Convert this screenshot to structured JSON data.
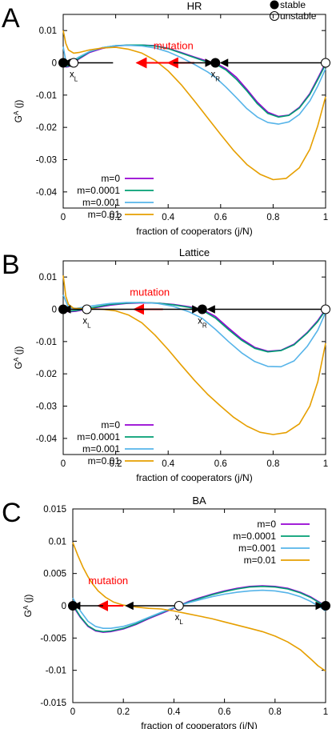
{
  "stability_legend": {
    "stable": "stable",
    "unstable": "unstable"
  },
  "colors": {
    "m=0": "#9400d3",
    "m=0.0001": "#009e73",
    "m=0.001": "#56b4e9",
    "m=0.01": "#e69f00",
    "arrow_red": "#ff0000",
    "arrow_black": "#000000"
  },
  "chart_data": [
    {
      "panel": "A",
      "type": "line",
      "title": "HR",
      "xlabel": "fraction of cooperators (j/N)",
      "ylabel": "G^A (j)",
      "xlim": [
        0,
        1
      ],
      "ylim": [
        -0.045,
        0.015
      ],
      "xticks": [
        "0",
        "0.2",
        "0.4",
        "0.6",
        "0.8",
        "1"
      ],
      "yticks": [
        "0.01",
        "0",
        "-0.01",
        "-0.02",
        "-0.03",
        "-0.04"
      ],
      "legend_position": "bottom-left",
      "annotation": "mutation",
      "points": [
        {
          "label": "x",
          "sub": "L",
          "x": 0.04,
          "y": 0,
          "stable": false
        },
        {
          "label": "x",
          "sub": "R",
          "x": 0.58,
          "y": 0,
          "stable": true
        },
        {
          "label": "",
          "sub": "",
          "x": 0.0,
          "y": 0,
          "stable": true
        },
        {
          "label": "",
          "sub": "",
          "x": 1.0,
          "y": 0,
          "stable": false
        }
      ],
      "series": [
        {
          "name": "m=0",
          "x": [
            0,
            0.01,
            0.02,
            0.04,
            0.06,
            0.1,
            0.15,
            0.2,
            0.25,
            0.3,
            0.35,
            0.4,
            0.45,
            0.5,
            0.55,
            0.58,
            0.62,
            0.66,
            0.7,
            0.74,
            0.78,
            0.82,
            0.86,
            0.9,
            0.94,
            0.97,
            1.0
          ],
          "y": [
            0.0,
            -0.0013,
            -0.0012,
            0.0,
            0.0012,
            0.0032,
            0.0045,
            0.0052,
            0.0055,
            0.0055,
            0.0053,
            0.0045,
            0.0032,
            0.0018,
            0.0005,
            0.0,
            -0.0018,
            -0.0045,
            -0.0082,
            -0.0122,
            -0.0153,
            -0.0166,
            -0.0162,
            -0.0138,
            -0.0095,
            -0.0048,
            0.0
          ]
        },
        {
          "name": "m=0.0001",
          "x": [
            0,
            0.01,
            0.02,
            0.04,
            0.06,
            0.1,
            0.15,
            0.2,
            0.25,
            0.3,
            0.35,
            0.4,
            0.45,
            0.5,
            0.55,
            0.58,
            0.62,
            0.66,
            0.7,
            0.74,
            0.78,
            0.82,
            0.86,
            0.9,
            0.94,
            0.97,
            1.0
          ],
          "y": [
            0.0005,
            -0.0011,
            -0.001,
            0.0002,
            0.0014,
            0.0034,
            0.0047,
            0.0053,
            0.0055,
            0.0055,
            0.0052,
            0.0044,
            0.003,
            0.0016,
            0.0002,
            -0.0004,
            -0.0022,
            -0.0051,
            -0.0087,
            -0.0127,
            -0.0157,
            -0.0168,
            -0.0163,
            -0.014,
            -0.0098,
            -0.0052,
            -0.0005
          ]
        },
        {
          "name": "m=0.001",
          "x": [
            0,
            0.01,
            0.02,
            0.04,
            0.06,
            0.1,
            0.15,
            0.2,
            0.25,
            0.3,
            0.35,
            0.4,
            0.45,
            0.5,
            0.55,
            0.58,
            0.62,
            0.66,
            0.7,
            0.74,
            0.78,
            0.82,
            0.86,
            0.9,
            0.94,
            0.97,
            1.0
          ],
          "y": [
            0.005,
            0.0005,
            -0.0002,
            0.0008,
            0.0018,
            0.0035,
            0.0047,
            0.0053,
            0.0054,
            0.0052,
            0.0046,
            0.0034,
            0.0016,
            -0.0005,
            -0.0028,
            -0.0045,
            -0.0075,
            -0.0108,
            -0.0142,
            -0.0168,
            -0.0185,
            -0.019,
            -0.0183,
            -0.016,
            -0.0118,
            -0.0072,
            -0.0018
          ]
        },
        {
          "name": "m=0.01",
          "x": [
            0,
            0.01,
            0.02,
            0.04,
            0.06,
            0.1,
            0.15,
            0.2,
            0.25,
            0.3,
            0.35,
            0.4,
            0.45,
            0.5,
            0.55,
            0.6,
            0.65,
            0.7,
            0.75,
            0.8,
            0.85,
            0.9,
            0.94,
            0.97,
            1.0
          ],
          "y": [
            0.01,
            0.006,
            0.004,
            0.003,
            0.0032,
            0.004,
            0.0046,
            0.0048,
            0.0042,
            0.003,
            0.0008,
            -0.0025,
            -0.0068,
            -0.0118,
            -0.017,
            -0.0222,
            -0.0272,
            -0.0315,
            -0.0345,
            -0.0362,
            -0.0358,
            -0.0325,
            -0.0268,
            -0.0195,
            -0.0105
          ]
        }
      ],
      "arrows": [
        {
          "x1": 0.19,
          "x2": 0.0,
          "color": "arrow_black"
        },
        {
          "x1": 0.42,
          "x2": 0.28,
          "color": "arrow_red"
        },
        {
          "x1": 0.5,
          "x2": 0.4,
          "color": "arrow_red"
        },
        {
          "x1": 0.42,
          "x2": 0.57,
          "color": "arrow_black"
        },
        {
          "x1": 0.99,
          "x2": 0.6,
          "color": "arrow_black"
        }
      ]
    },
    {
      "panel": "B",
      "type": "line",
      "title": "Lattice",
      "xlabel": "fraction of cooperators (j/N)",
      "ylabel": "G^A (j)",
      "xlim": [
        0,
        1
      ],
      "ylim": [
        -0.045,
        0.015
      ],
      "xticks": [
        "0",
        "0.2",
        "0.4",
        "0.6",
        "0.8",
        "1"
      ],
      "yticks": [
        "0.01",
        "0",
        "-0.01",
        "-0.02",
        "-0.03",
        "-0.04"
      ],
      "legend_position": "bottom-left",
      "annotation": "mutation",
      "points": [
        {
          "label": "x",
          "sub": "L",
          "x": 0.09,
          "y": 0,
          "stable": false
        },
        {
          "label": "x",
          "sub": "R",
          "x": 0.53,
          "y": 0,
          "stable": true
        },
        {
          "label": "",
          "sub": "",
          "x": 0.0,
          "y": 0,
          "stable": true
        },
        {
          "label": "",
          "sub": "",
          "x": 1.0,
          "y": 0,
          "stable": false
        }
      ],
      "series": [
        {
          "name": "m=0",
          "x": [
            0,
            0.02,
            0.05,
            0.09,
            0.13,
            0.18,
            0.24,
            0.3,
            0.36,
            0.42,
            0.48,
            0.53,
            0.58,
            0.63,
            0.68,
            0.73,
            0.78,
            0.83,
            0.88,
            0.93,
            0.97,
            1.0
          ],
          "y": [
            0.0,
            -0.0008,
            -0.0006,
            0.0,
            0.0006,
            0.0013,
            0.0018,
            0.002,
            0.0019,
            0.0015,
            0.0008,
            0.0,
            -0.0022,
            -0.0058,
            -0.0092,
            -0.0118,
            -0.013,
            -0.0127,
            -0.0108,
            -0.0072,
            -0.0035,
            0.0
          ]
        },
        {
          "name": "m=0.0001",
          "x": [
            0,
            0.02,
            0.05,
            0.09,
            0.13,
            0.18,
            0.24,
            0.3,
            0.36,
            0.42,
            0.48,
            0.53,
            0.58,
            0.63,
            0.68,
            0.73,
            0.78,
            0.83,
            0.88,
            0.93,
            0.97,
            1.0
          ],
          "y": [
            0.0004,
            -0.0006,
            -0.0004,
            0.0002,
            0.0008,
            0.0015,
            0.0019,
            0.0021,
            0.0019,
            0.0014,
            0.0006,
            -0.0003,
            -0.0027,
            -0.0063,
            -0.0096,
            -0.0121,
            -0.0132,
            -0.0128,
            -0.011,
            -0.0074,
            -0.0038,
            -0.0003
          ]
        },
        {
          "name": "m=0.001",
          "x": [
            0,
            0.02,
            0.05,
            0.09,
            0.13,
            0.18,
            0.24,
            0.3,
            0.36,
            0.42,
            0.48,
            0.53,
            0.58,
            0.63,
            0.68,
            0.73,
            0.78,
            0.83,
            0.88,
            0.93,
            0.97,
            1.0
          ],
          "y": [
            0.0045,
            0.0005,
            0.0003,
            0.0008,
            0.0013,
            0.0018,
            0.0021,
            0.0021,
            0.0018,
            0.0009,
            -0.0008,
            -0.0028,
            -0.0062,
            -0.01,
            -0.0135,
            -0.0162,
            -0.0177,
            -0.0178,
            -0.016,
            -0.0115,
            -0.0065,
            -0.001
          ]
        },
        {
          "name": "m=0.01",
          "x": [
            0,
            0.01,
            0.02,
            0.04,
            0.07,
            0.1,
            0.15,
            0.2,
            0.25,
            0.3,
            0.35,
            0.4,
            0.45,
            0.5,
            0.55,
            0.6,
            0.65,
            0.7,
            0.75,
            0.8,
            0.85,
            0.9,
            0.94,
            0.97,
            1.0
          ],
          "y": [
            0.0105,
            0.004,
            0.0015,
            0.0003,
            0.0002,
            0.0002,
            0.0,
            -0.0005,
            -0.0018,
            -0.0042,
            -0.008,
            -0.0125,
            -0.0173,
            -0.022,
            -0.0263,
            -0.03,
            -0.0335,
            -0.0362,
            -0.0381,
            -0.0388,
            -0.0382,
            -0.0355,
            -0.03,
            -0.0225,
            -0.0105
          ]
        }
      ],
      "arrows": [
        {
          "x1": 0.09,
          "x2": 0.0,
          "color": "arrow_black"
        },
        {
          "x1": 0.38,
          "x2": 0.27,
          "color": "arrow_red"
        },
        {
          "x1": 0.09,
          "x2": 0.52,
          "color": "arrow_black"
        },
        {
          "x1": 0.99,
          "x2": 0.55,
          "color": "arrow_black"
        }
      ]
    },
    {
      "panel": "C",
      "type": "line",
      "title": "BA",
      "xlabel": "fraction of cooperators (j/N)",
      "ylabel": "G^A (j)",
      "xlim": [
        0,
        1
      ],
      "ylim": [
        -0.015,
        0.015
      ],
      "xticks": [
        "0",
        "0.2",
        "0.4",
        "0.6",
        "0.8",
        "1"
      ],
      "yticks": [
        "0.015",
        "0.01",
        "0.005",
        "0",
        "-0.005",
        "-0.01",
        "-0.015"
      ],
      "legend_position": "top-right",
      "annotation": "mutation",
      "points": [
        {
          "label": "x",
          "sub": "L",
          "x": 0.42,
          "y": 0,
          "stable": false
        },
        {
          "label": "",
          "sub": "",
          "x": 0.0,
          "y": 0,
          "stable": true
        },
        {
          "label": "",
          "sub": "",
          "x": 1.0,
          "y": 0,
          "stable": true
        }
      ],
      "series": [
        {
          "name": "m=0",
          "x": [
            0,
            0.03,
            0.06,
            0.09,
            0.12,
            0.15,
            0.2,
            0.25,
            0.3,
            0.35,
            0.4,
            0.42,
            0.46,
            0.5,
            0.55,
            0.6,
            0.65,
            0.7,
            0.75,
            0.8,
            0.85,
            0.9,
            0.94,
            0.97,
            1.0
          ],
          "y": [
            0.0,
            -0.0018,
            -0.0032,
            -0.0039,
            -0.0041,
            -0.004,
            -0.0036,
            -0.0029,
            -0.002,
            -0.0012,
            -0.0004,
            0.0,
            0.0007,
            0.0012,
            0.0018,
            0.0023,
            0.0027,
            0.003,
            0.0031,
            0.003,
            0.0027,
            0.0021,
            0.0014,
            0.0007,
            0.0
          ]
        },
        {
          "name": "m=0.0001",
          "x": [
            0,
            0.03,
            0.06,
            0.09,
            0.12,
            0.15,
            0.2,
            0.25,
            0.3,
            0.35,
            0.4,
            0.42,
            0.46,
            0.5,
            0.55,
            0.6,
            0.65,
            0.7,
            0.75,
            0.8,
            0.85,
            0.9,
            0.94,
            0.97,
            1.0
          ],
          "y": [
            0.0002,
            -0.0017,
            -0.0031,
            -0.0038,
            -0.004,
            -0.0039,
            -0.0035,
            -0.0028,
            -0.0019,
            -0.0011,
            -0.0003,
            0.0,
            0.0006,
            0.0011,
            0.0017,
            0.0022,
            0.0026,
            0.0029,
            0.003,
            0.0029,
            0.0026,
            0.002,
            0.0013,
            0.0006,
            -0.0001
          ]
        },
        {
          "name": "m=0.001",
          "x": [
            0,
            0.03,
            0.06,
            0.09,
            0.12,
            0.15,
            0.2,
            0.25,
            0.3,
            0.35,
            0.4,
            0.42,
            0.46,
            0.5,
            0.55,
            0.6,
            0.65,
            0.7,
            0.75,
            0.8,
            0.85,
            0.9,
            0.94,
            0.97,
            1.0
          ],
          "y": [
            0.0012,
            -0.0008,
            -0.0024,
            -0.0032,
            -0.0035,
            -0.0035,
            -0.0032,
            -0.0026,
            -0.0018,
            -0.001,
            -0.0003,
            0.0,
            0.0005,
            0.0009,
            0.0014,
            0.0018,
            0.0021,
            0.0023,
            0.0024,
            0.0023,
            0.002,
            0.0014,
            0.0007,
            0.0,
            -0.0008
          ]
        },
        {
          "name": "m=0.01",
          "x": [
            0,
            0.02,
            0.04,
            0.06,
            0.08,
            0.1,
            0.13,
            0.16,
            0.2,
            0.25,
            0.3,
            0.35,
            0.4,
            0.45,
            0.5,
            0.55,
            0.6,
            0.65,
            0.7,
            0.75,
            0.8,
            0.85,
            0.9,
            0.94,
            0.97,
            1.0
          ],
          "y": [
            0.0098,
            0.0078,
            0.006,
            0.0045,
            0.0033,
            0.0023,
            0.0013,
            0.0006,
            0.0001,
            -0.0002,
            -0.0004,
            -0.0005,
            -0.0008,
            -0.0012,
            -0.0016,
            -0.002,
            -0.0025,
            -0.003,
            -0.0035,
            -0.004,
            -0.0047,
            -0.0056,
            -0.0068,
            -0.0082,
            -0.0093,
            -0.0101
          ]
        }
      ],
      "arrows": [
        {
          "x1": 0.41,
          "x2": 0.21,
          "color": "arrow_black"
        },
        {
          "x1": 0.41,
          "x2": 0.99,
          "color": "arrow_black"
        },
        {
          "x1": 0.2,
          "x2": 0.1,
          "color": "arrow_red"
        },
        {
          "x1": 0.12,
          "x2": 0.0,
          "color": "arrow_black"
        }
      ]
    }
  ]
}
